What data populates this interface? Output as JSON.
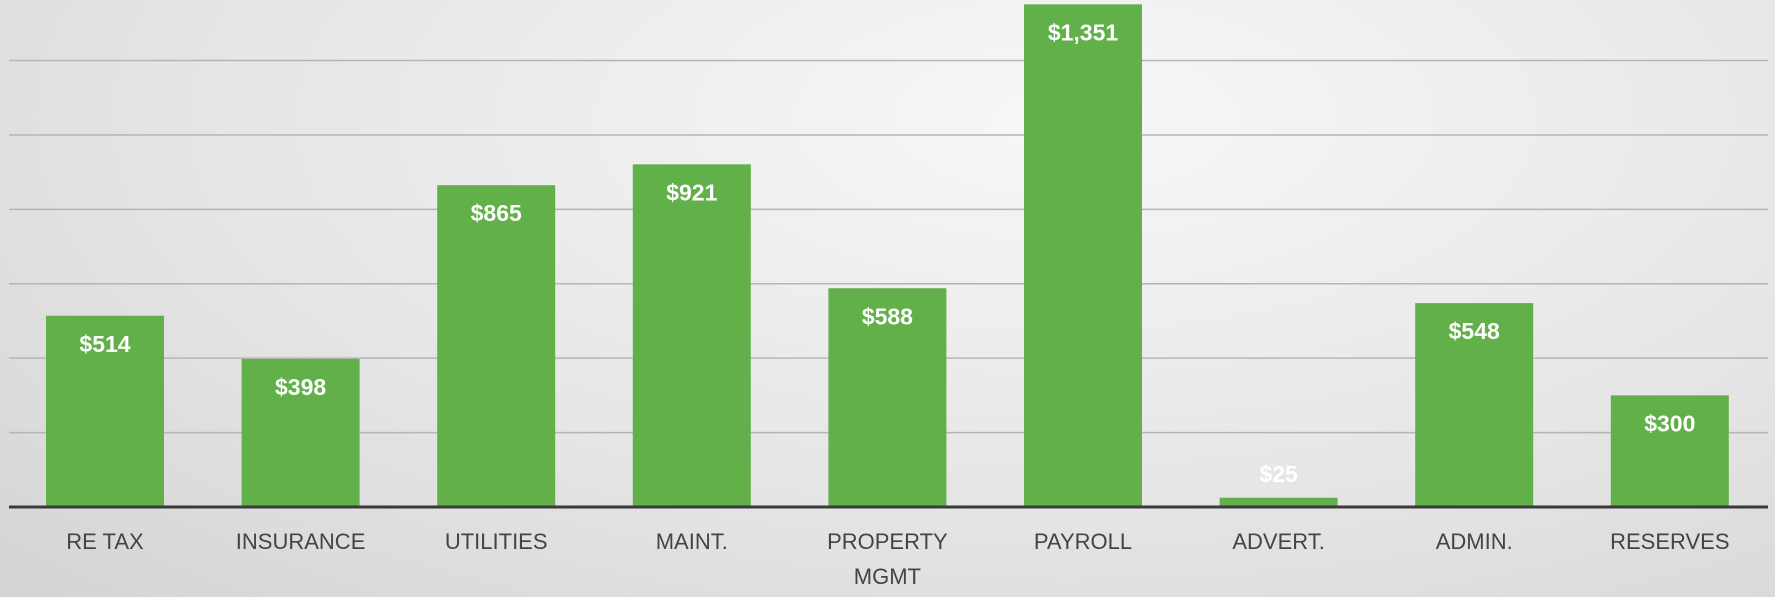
{
  "chart_data": {
    "type": "bar",
    "categories": [
      "RE TAX",
      "INSURANCE",
      "UTILITIES",
      "MAINT.",
      "PROPERTY MGMT",
      "PAYROLL",
      "ADVERT.",
      "ADMIN.",
      "RESERVES"
    ],
    "values": [
      514,
      398,
      865,
      921,
      588,
      1351,
      25,
      548,
      300
    ],
    "value_labels": [
      "$514",
      "$398",
      "$865",
      "$921",
      "$588",
      "$1,351",
      "$25",
      "$548",
      "$300"
    ],
    "color": "#62b04a",
    "ylim": [
      0,
      1360
    ],
    "yticks": [
      0,
      200,
      400,
      600,
      800,
      1000,
      1200
    ],
    "grid": true
  }
}
